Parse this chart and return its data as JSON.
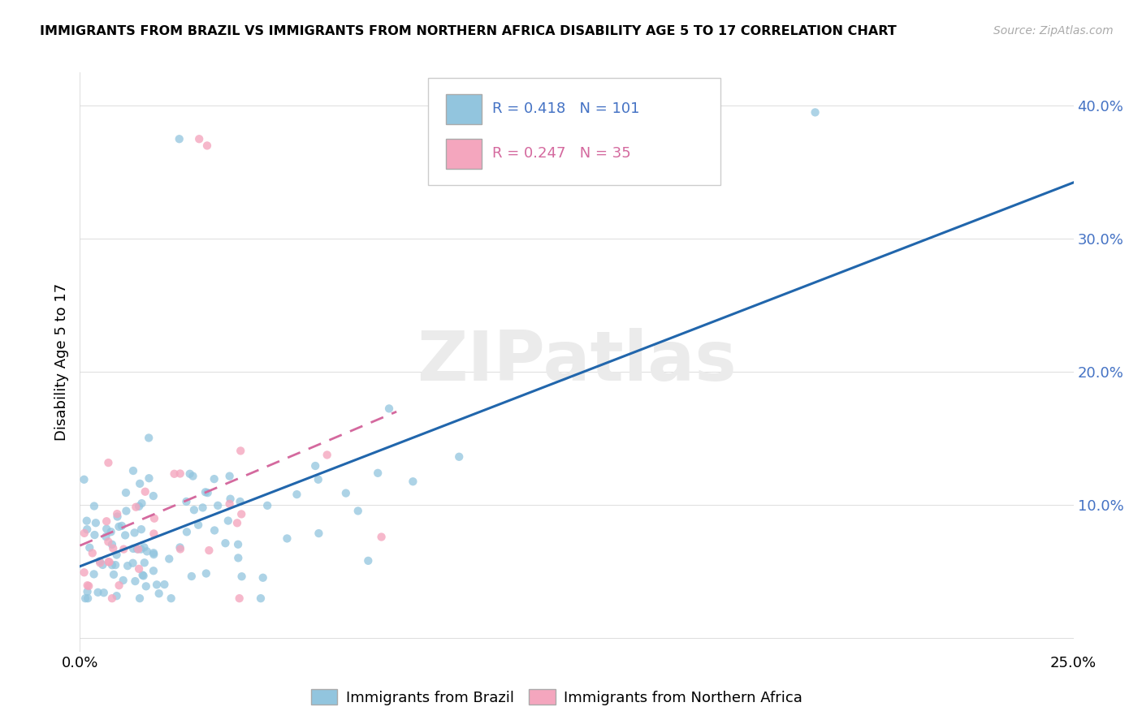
{
  "title": "IMMIGRANTS FROM BRAZIL VS IMMIGRANTS FROM NORTHERN AFRICA DISABILITY AGE 5 TO 17 CORRELATION CHART",
  "source": "Source: ZipAtlas.com",
  "ylabel": "Disability Age 5 to 17",
  "brazil_R": 0.418,
  "brazil_N": 101,
  "nafr_R": 0.247,
  "nafr_N": 35,
  "brazil_color": "#92c5de",
  "nafr_color": "#f4a6be",
  "brazil_line_color": "#2166ac",
  "nafr_line_color": "#d4699e",
  "xlim": [
    0.0,
    0.25
  ],
  "ylim": [
    -0.01,
    0.425
  ],
  "ytick_vals": [
    0.0,
    0.1,
    0.2,
    0.3,
    0.4
  ],
  "ytick_labels": [
    "",
    "10.0%",
    "20.0%",
    "30.0%",
    "40.0%"
  ],
  "xtick_vals": [
    0.0,
    0.25
  ],
  "xtick_labels": [
    "0.0%",
    "25.0%"
  ]
}
